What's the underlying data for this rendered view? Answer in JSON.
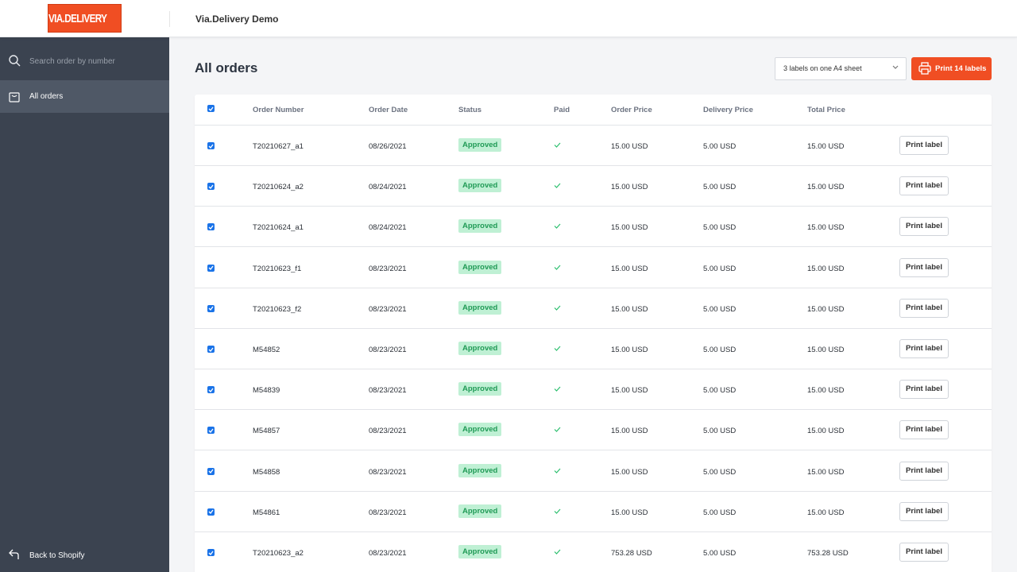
{
  "header": {
    "logo_text": "VIA.DELIVERY",
    "store_name": "Via.Delivery Demo"
  },
  "sidebar": {
    "search_placeholder": "Search order by number",
    "icons": {
      "search": "search-icon",
      "orders": "shopping-bag-icon",
      "back": "return-arrow-icon"
    },
    "items": [
      {
        "label": "All orders",
        "active": true
      }
    ],
    "back_label": "Back to Shopify"
  },
  "main": {
    "title": "All orders",
    "sheet_select": {
      "value": "3 labels on one A4 sheet"
    },
    "print_button": {
      "label": "Print 14 labels",
      "icon": "printer-icon"
    },
    "colors": {
      "accent": "#f04e23",
      "sidebar": "#3b4350",
      "sidebar_active": "#4f5866",
      "approved_bg": "#bff0d4",
      "approved_text": "#1f9a55"
    },
    "table": {
      "headers": [
        "Order Number",
        "Order Date",
        "Status",
        "Paid",
        "Order Price",
        "Delivery Price",
        "Total Price"
      ],
      "print_label": "Print label",
      "rows": [
        {
          "order_number": "T20210627_a1",
          "order_date": "08/26/2021",
          "status": "Approved",
          "paid": "✓",
          "order_price": "15.00 USD",
          "delivery_price": "5.00 USD",
          "total_price": "15.00 USD"
        },
        {
          "order_number": "T20210624_a2",
          "order_date": "08/24/2021",
          "status": "Approved",
          "paid": "✓",
          "order_price": "15.00 USD",
          "delivery_price": "5.00 USD",
          "total_price": "15.00 USD"
        },
        {
          "order_number": "T20210624_a1",
          "order_date": "08/24/2021",
          "status": "Approved",
          "paid": "✓",
          "order_price": "15.00 USD",
          "delivery_price": "5.00 USD",
          "total_price": "15.00 USD"
        },
        {
          "order_number": "T20210623_f1",
          "order_date": "08/23/2021",
          "status": "Approved",
          "paid": "✓",
          "order_price": "15.00 USD",
          "delivery_price": "5.00 USD",
          "total_price": "15.00 USD"
        },
        {
          "order_number": "T20210623_f2",
          "order_date": "08/23/2021",
          "status": "Approved",
          "paid": "✓",
          "order_price": "15.00 USD",
          "delivery_price": "5.00 USD",
          "total_price": "15.00 USD"
        },
        {
          "order_number": "M54852",
          "order_date": "08/23/2021",
          "status": "Approved",
          "paid": "✓",
          "order_price": "15.00 USD",
          "delivery_price": "5.00 USD",
          "total_price": "15.00 USD"
        },
        {
          "order_number": "M54839",
          "order_date": "08/23/2021",
          "status": "Approved",
          "paid": "✓",
          "order_price": "15.00 USD",
          "delivery_price": "5.00 USD",
          "total_price": "15.00 USD"
        },
        {
          "order_number": "M54857",
          "order_date": "08/23/2021",
          "status": "Approved",
          "paid": "✓",
          "order_price": "15.00 USD",
          "delivery_price": "5.00 USD",
          "total_price": "15.00 USD"
        },
        {
          "order_number": "M54858",
          "order_date": "08/23/2021",
          "status": "Approved",
          "paid": "✓",
          "order_price": "15.00 USD",
          "delivery_price": "5.00 USD",
          "total_price": "15.00 USD"
        },
        {
          "order_number": "M54861",
          "order_date": "08/23/2021",
          "status": "Approved",
          "paid": "✓",
          "order_price": "15.00 USD",
          "delivery_price": "5.00 USD",
          "total_price": "15.00 USD"
        },
        {
          "order_number": "T20210623_a2",
          "order_date": "08/23/2021",
          "status": "Approved",
          "paid": "✓",
          "order_price": "753.28 USD",
          "delivery_price": "5.00 USD",
          "total_price": "753.28 USD"
        }
      ]
    }
  }
}
